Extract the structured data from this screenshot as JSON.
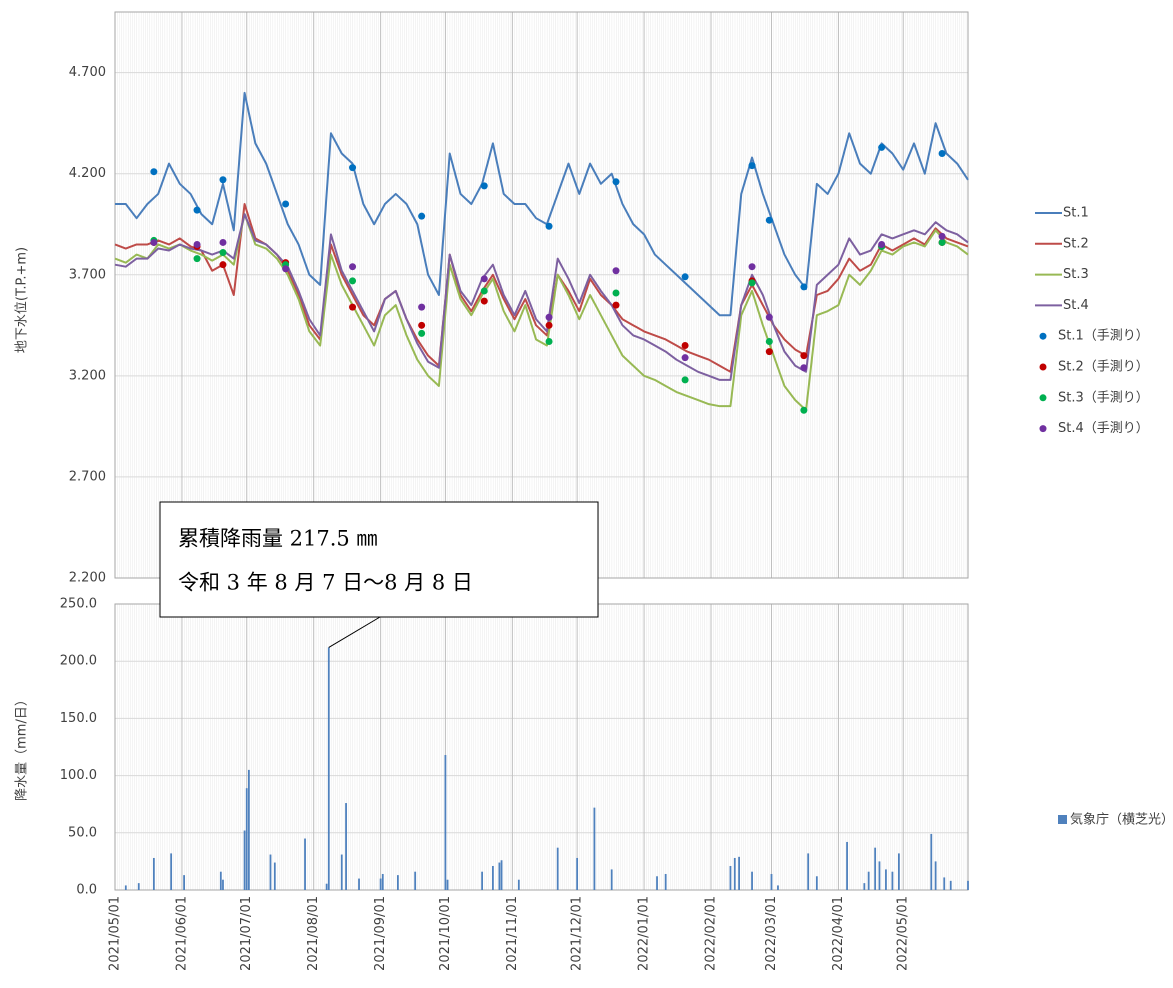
{
  "chart_data": [
    {
      "type": "line",
      "y_label": "地下水位(T.P.+m)",
      "xlim": [
        "2021/05/01",
        "2022/05/31"
      ],
      "xticks": [
        "2021/05/01",
        "2021/06/01",
        "2021/07/01",
        "2021/08/01",
        "2021/09/01",
        "2021/10/01",
        "2021/11/01",
        "2021/12/01",
        "2022/01/01",
        "2022/02/01",
        "2022/03/01",
        "2022/04/01",
        "2022/05/01"
      ],
      "ylim": [
        2.2,
        5.0
      ],
      "yticks": [
        {
          "value": 2.2,
          "label": "2.200"
        },
        {
          "value": 2.7,
          "label": "2.700"
        },
        {
          "value": 3.2,
          "label": "3.200"
        },
        {
          "value": 3.7,
          "label": "3.700"
        },
        {
          "value": 4.2,
          "label": "4.200"
        },
        {
          "value": 4.7,
          "label": "4.700"
        }
      ],
      "grid": true,
      "x": [
        "2021/05/01",
        "2021/05/06",
        "2021/05/11",
        "2021/05/16",
        "2021/05/21",
        "2021/05/26",
        "2021/05/31",
        "2021/06/05",
        "2021/06/10",
        "2021/06/15",
        "2021/06/20",
        "2021/06/25",
        "2021/06/30",
        "2021/07/05",
        "2021/07/10",
        "2021/07/15",
        "2021/07/20",
        "2021/07/25",
        "2021/07/30",
        "2021/08/04",
        "2021/08/09",
        "2021/08/14",
        "2021/08/19",
        "2021/08/24",
        "2021/08/29",
        "2021/09/03",
        "2021/09/08",
        "2021/09/13",
        "2021/09/18",
        "2021/09/23",
        "2021/09/28",
        "2021/10/03",
        "2021/10/08",
        "2021/10/13",
        "2021/10/18",
        "2021/10/23",
        "2021/10/28",
        "2021/11/02",
        "2021/11/07",
        "2021/11/12",
        "2021/11/17",
        "2021/11/22",
        "2021/11/27",
        "2021/12/02",
        "2021/12/07",
        "2021/12/12",
        "2021/12/17",
        "2021/12/22",
        "2021/12/27",
        "2022/01/01",
        "2022/01/06",
        "2022/01/11",
        "2022/01/16",
        "2022/01/21",
        "2022/01/26",
        "2022/01/31",
        "2022/02/05",
        "2022/02/10",
        "2022/02/15",
        "2022/02/20",
        "2022/02/25",
        "2022/03/02",
        "2022/03/07",
        "2022/03/12",
        "2022/03/17",
        "2022/03/22",
        "2022/03/27",
        "2022/04/01",
        "2022/04/06",
        "2022/04/11",
        "2022/04/16",
        "2022/04/21",
        "2022/04/26",
        "2022/05/01",
        "2022/05/06",
        "2022/05/11",
        "2022/05/16",
        "2022/05/21",
        "2022/05/26",
        "2022/05/31"
      ],
      "series": [
        {
          "name": "St.1",
          "color": "#4a7ebb",
          "values": [
            4.05,
            4.05,
            3.98,
            4.05,
            4.1,
            4.25,
            4.15,
            4.1,
            4.0,
            3.95,
            4.15,
            3.92,
            4.6,
            4.35,
            4.25,
            4.1,
            3.95,
            3.85,
            3.7,
            3.65,
            4.4,
            4.3,
            4.25,
            4.05,
            3.95,
            4.05,
            4.1,
            4.05,
            3.95,
            3.7,
            3.6,
            4.3,
            4.1,
            4.05,
            4.15,
            4.35,
            4.1,
            4.05,
            4.05,
            3.98,
            3.95,
            4.1,
            4.25,
            4.1,
            4.25,
            4.15,
            4.2,
            4.05,
            3.95,
            3.9,
            3.8,
            3.75,
            3.7,
            3.65,
            3.6,
            3.55,
            3.5,
            3.5,
            4.1,
            4.28,
            4.1,
            3.95,
            3.8,
            3.7,
            3.63,
            4.15,
            4.1,
            4.2,
            4.4,
            4.25,
            4.2,
            4.35,
            4.3,
            4.22,
            4.35,
            4.2,
            4.45,
            4.3,
            4.25,
            4.17
          ]
        },
        {
          "name": "St.2",
          "color": "#be4b48",
          "values": [
            3.85,
            3.83,
            3.85,
            3.85,
            3.87,
            3.85,
            3.88,
            3.84,
            3.82,
            3.72,
            3.75,
            3.6,
            4.05,
            3.88,
            3.85,
            3.8,
            3.72,
            3.6,
            3.45,
            3.38,
            3.85,
            3.7,
            3.6,
            3.5,
            3.45,
            3.58,
            3.62,
            3.48,
            3.38,
            3.3,
            3.25,
            3.8,
            3.6,
            3.52,
            3.62,
            3.7,
            3.58,
            3.48,
            3.58,
            3.45,
            3.4,
            3.7,
            3.62,
            3.52,
            3.68,
            3.6,
            3.55,
            3.48,
            3.45,
            3.42,
            3.4,
            3.38,
            3.35,
            3.32,
            3.3,
            3.28,
            3.25,
            3.22,
            3.55,
            3.65,
            3.55,
            3.45,
            3.38,
            3.33,
            3.3,
            3.6,
            3.62,
            3.68,
            3.78,
            3.72,
            3.75,
            3.85,
            3.82,
            3.85,
            3.88,
            3.85,
            3.93,
            3.88,
            3.86,
            3.84
          ]
        },
        {
          "name": "St.3",
          "color": "#98b954",
          "values": [
            3.78,
            3.76,
            3.8,
            3.78,
            3.85,
            3.83,
            3.85,
            3.82,
            3.8,
            3.77,
            3.8,
            3.75,
            4.0,
            3.85,
            3.83,
            3.78,
            3.7,
            3.58,
            3.42,
            3.35,
            3.8,
            3.65,
            3.55,
            3.45,
            3.35,
            3.5,
            3.55,
            3.4,
            3.28,
            3.2,
            3.15,
            3.75,
            3.58,
            3.5,
            3.6,
            3.68,
            3.52,
            3.42,
            3.55,
            3.38,
            3.35,
            3.7,
            3.6,
            3.48,
            3.6,
            3.5,
            3.4,
            3.3,
            3.25,
            3.2,
            3.18,
            3.15,
            3.12,
            3.1,
            3.08,
            3.06,
            3.05,
            3.05,
            3.5,
            3.62,
            3.45,
            3.3,
            3.15,
            3.08,
            3.03,
            3.5,
            3.52,
            3.55,
            3.7,
            3.65,
            3.72,
            3.82,
            3.8,
            3.84,
            3.86,
            3.84,
            3.92,
            3.86,
            3.84,
            3.8
          ]
        },
        {
          "name": "St.4",
          "color": "#7d60a0",
          "values": [
            3.75,
            3.74,
            3.78,
            3.78,
            3.83,
            3.82,
            3.85,
            3.83,
            3.82,
            3.8,
            3.82,
            3.78,
            4.0,
            3.87,
            3.85,
            3.8,
            3.74,
            3.62,
            3.48,
            3.4,
            3.9,
            3.72,
            3.62,
            3.52,
            3.42,
            3.58,
            3.62,
            3.48,
            3.36,
            3.27,
            3.24,
            3.8,
            3.62,
            3.55,
            3.68,
            3.75,
            3.6,
            3.5,
            3.62,
            3.48,
            3.42,
            3.78,
            3.68,
            3.56,
            3.7,
            3.62,
            3.55,
            3.45,
            3.4,
            3.38,
            3.35,
            3.32,
            3.28,
            3.25,
            3.22,
            3.2,
            3.18,
            3.18,
            3.55,
            3.7,
            3.6,
            3.45,
            3.32,
            3.25,
            3.22,
            3.65,
            3.7,
            3.75,
            3.88,
            3.8,
            3.82,
            3.9,
            3.88,
            3.9,
            3.92,
            3.9,
            3.96,
            3.92,
            3.9,
            3.86
          ]
        }
      ],
      "manual_x": [
        "2021/05/19",
        "2021/06/08",
        "2021/06/20",
        "2021/07/19",
        "2021/08/19",
        "2021/09/20",
        "2021/10/19",
        "2021/11/18",
        "2021/12/19",
        "2022/01/20",
        "2022/02/20",
        "2022/02/28",
        "2022/03/16",
        "2022/04/21",
        "2022/05/19"
      ],
      "manual_series": [
        {
          "name": "St.1（手測り）",
          "color": "#0070c0",
          "values": [
            4.21,
            4.02,
            4.17,
            4.05,
            4.23,
            3.99,
            4.14,
            3.94,
            4.16,
            3.69,
            4.24,
            3.97,
            3.64,
            4.33,
            4.3
          ]
        },
        {
          "name": "St.2（手測り）",
          "color": "#c00000",
          "values": [
            3.86,
            3.84,
            3.75,
            3.76,
            3.54,
            3.45,
            3.57,
            3.45,
            3.55,
            3.35,
            3.67,
            3.32,
            3.3,
            3.84,
            3.86
          ]
        },
        {
          "name": "St.3（手測り）",
          "color": "#00b050",
          "values": [
            3.87,
            3.78,
            3.81,
            3.75,
            3.67,
            3.41,
            3.62,
            3.37,
            3.61,
            3.18,
            3.66,
            3.37,
            3.03,
            3.84,
            3.86
          ]
        },
        {
          "name": "St.4（手測り）",
          "color": "#7030a0",
          "values": [
            3.86,
            3.85,
            3.86,
            3.73,
            3.74,
            3.54,
            3.68,
            3.49,
            3.72,
            3.29,
            3.74,
            3.49,
            3.24,
            3.85,
            3.89
          ]
        }
      ]
    },
    {
      "type": "bar",
      "y_label": "降水量（mm/日）",
      "xlim": [
        "2021/05/01",
        "2022/05/31"
      ],
      "xticks": [
        "2021/05/01",
        "2021/06/01",
        "2021/07/01",
        "2021/08/01",
        "2021/09/01",
        "2021/10/01",
        "2021/11/01",
        "2021/12/01",
        "2022/01/01",
        "2022/02/01",
        "2022/03/01",
        "2022/04/01",
        "2022/05/01"
      ],
      "ylim": [
        0,
        250
      ],
      "yticks": [
        {
          "value": 0,
          "label": "0.0"
        },
        {
          "value": 50,
          "label": "50.0"
        },
        {
          "value": 100,
          "label": "100.0"
        },
        {
          "value": 150,
          "label": "150.0"
        },
        {
          "value": 200,
          "label": "200.0"
        },
        {
          "value": 250,
          "label": "250.0"
        }
      ],
      "grid": true,
      "x": [
        "2021/05/06",
        "2021/05/12",
        "2021/05/19",
        "2021/05/27",
        "2021/06/02",
        "2021/06/19",
        "2021/06/20",
        "2021/06/30",
        "2021/07/01",
        "2021/07/02",
        "2021/07/12",
        "2021/07/14",
        "2021/07/28",
        "2021/08/07",
        "2021/08/08",
        "2021/08/14",
        "2021/08/16",
        "2021/08/22",
        "2021/09/01",
        "2021/09/02",
        "2021/09/09",
        "2021/09/17",
        "2021/10/01",
        "2021/10/02",
        "2021/10/18",
        "2021/10/23",
        "2021/10/26",
        "2021/10/27",
        "2021/11/04",
        "2021/11/22",
        "2021/12/01",
        "2021/12/09",
        "2021/12/17",
        "2022/01/07",
        "2022/01/11",
        "2022/02/10",
        "2022/02/12",
        "2022/02/14",
        "2022/02/20",
        "2022/03/01",
        "2022/03/04",
        "2022/03/18",
        "2022/03/22",
        "2022/04/05",
        "2022/04/13",
        "2022/04/15",
        "2022/04/18",
        "2022/04/20",
        "2022/04/23",
        "2022/04/26",
        "2022/04/29",
        "2022/05/14",
        "2022/05/16",
        "2022/05/20",
        "2022/05/23",
        "2022/05/31"
      ],
      "series": [
        {
          "name": "気象庁（横芝光）",
          "color": "#4f81bd",
          "values": [
            4,
            6,
            28,
            32,
            13,
            16,
            9,
            52,
            89,
            105,
            31,
            24,
            45,
            5.5,
            212,
            31,
            76,
            10,
            10,
            14,
            13,
            16,
            118,
            9,
            16,
            21,
            24,
            26,
            9,
            37,
            28,
            72,
            18,
            12,
            14,
            21,
            28,
            29,
            16,
            14,
            4,
            32,
            12,
            42,
            6,
            16,
            37,
            25,
            18,
            16,
            32,
            49,
            25,
            11,
            8,
            8
          ]
        }
      ],
      "annotation": [
        "累積降雨量 217.5 ㎜",
        "令和 3 年 8 月 7 日～8 月 8 日"
      ],
      "annotation_x": "2021/08/08"
    }
  ]
}
